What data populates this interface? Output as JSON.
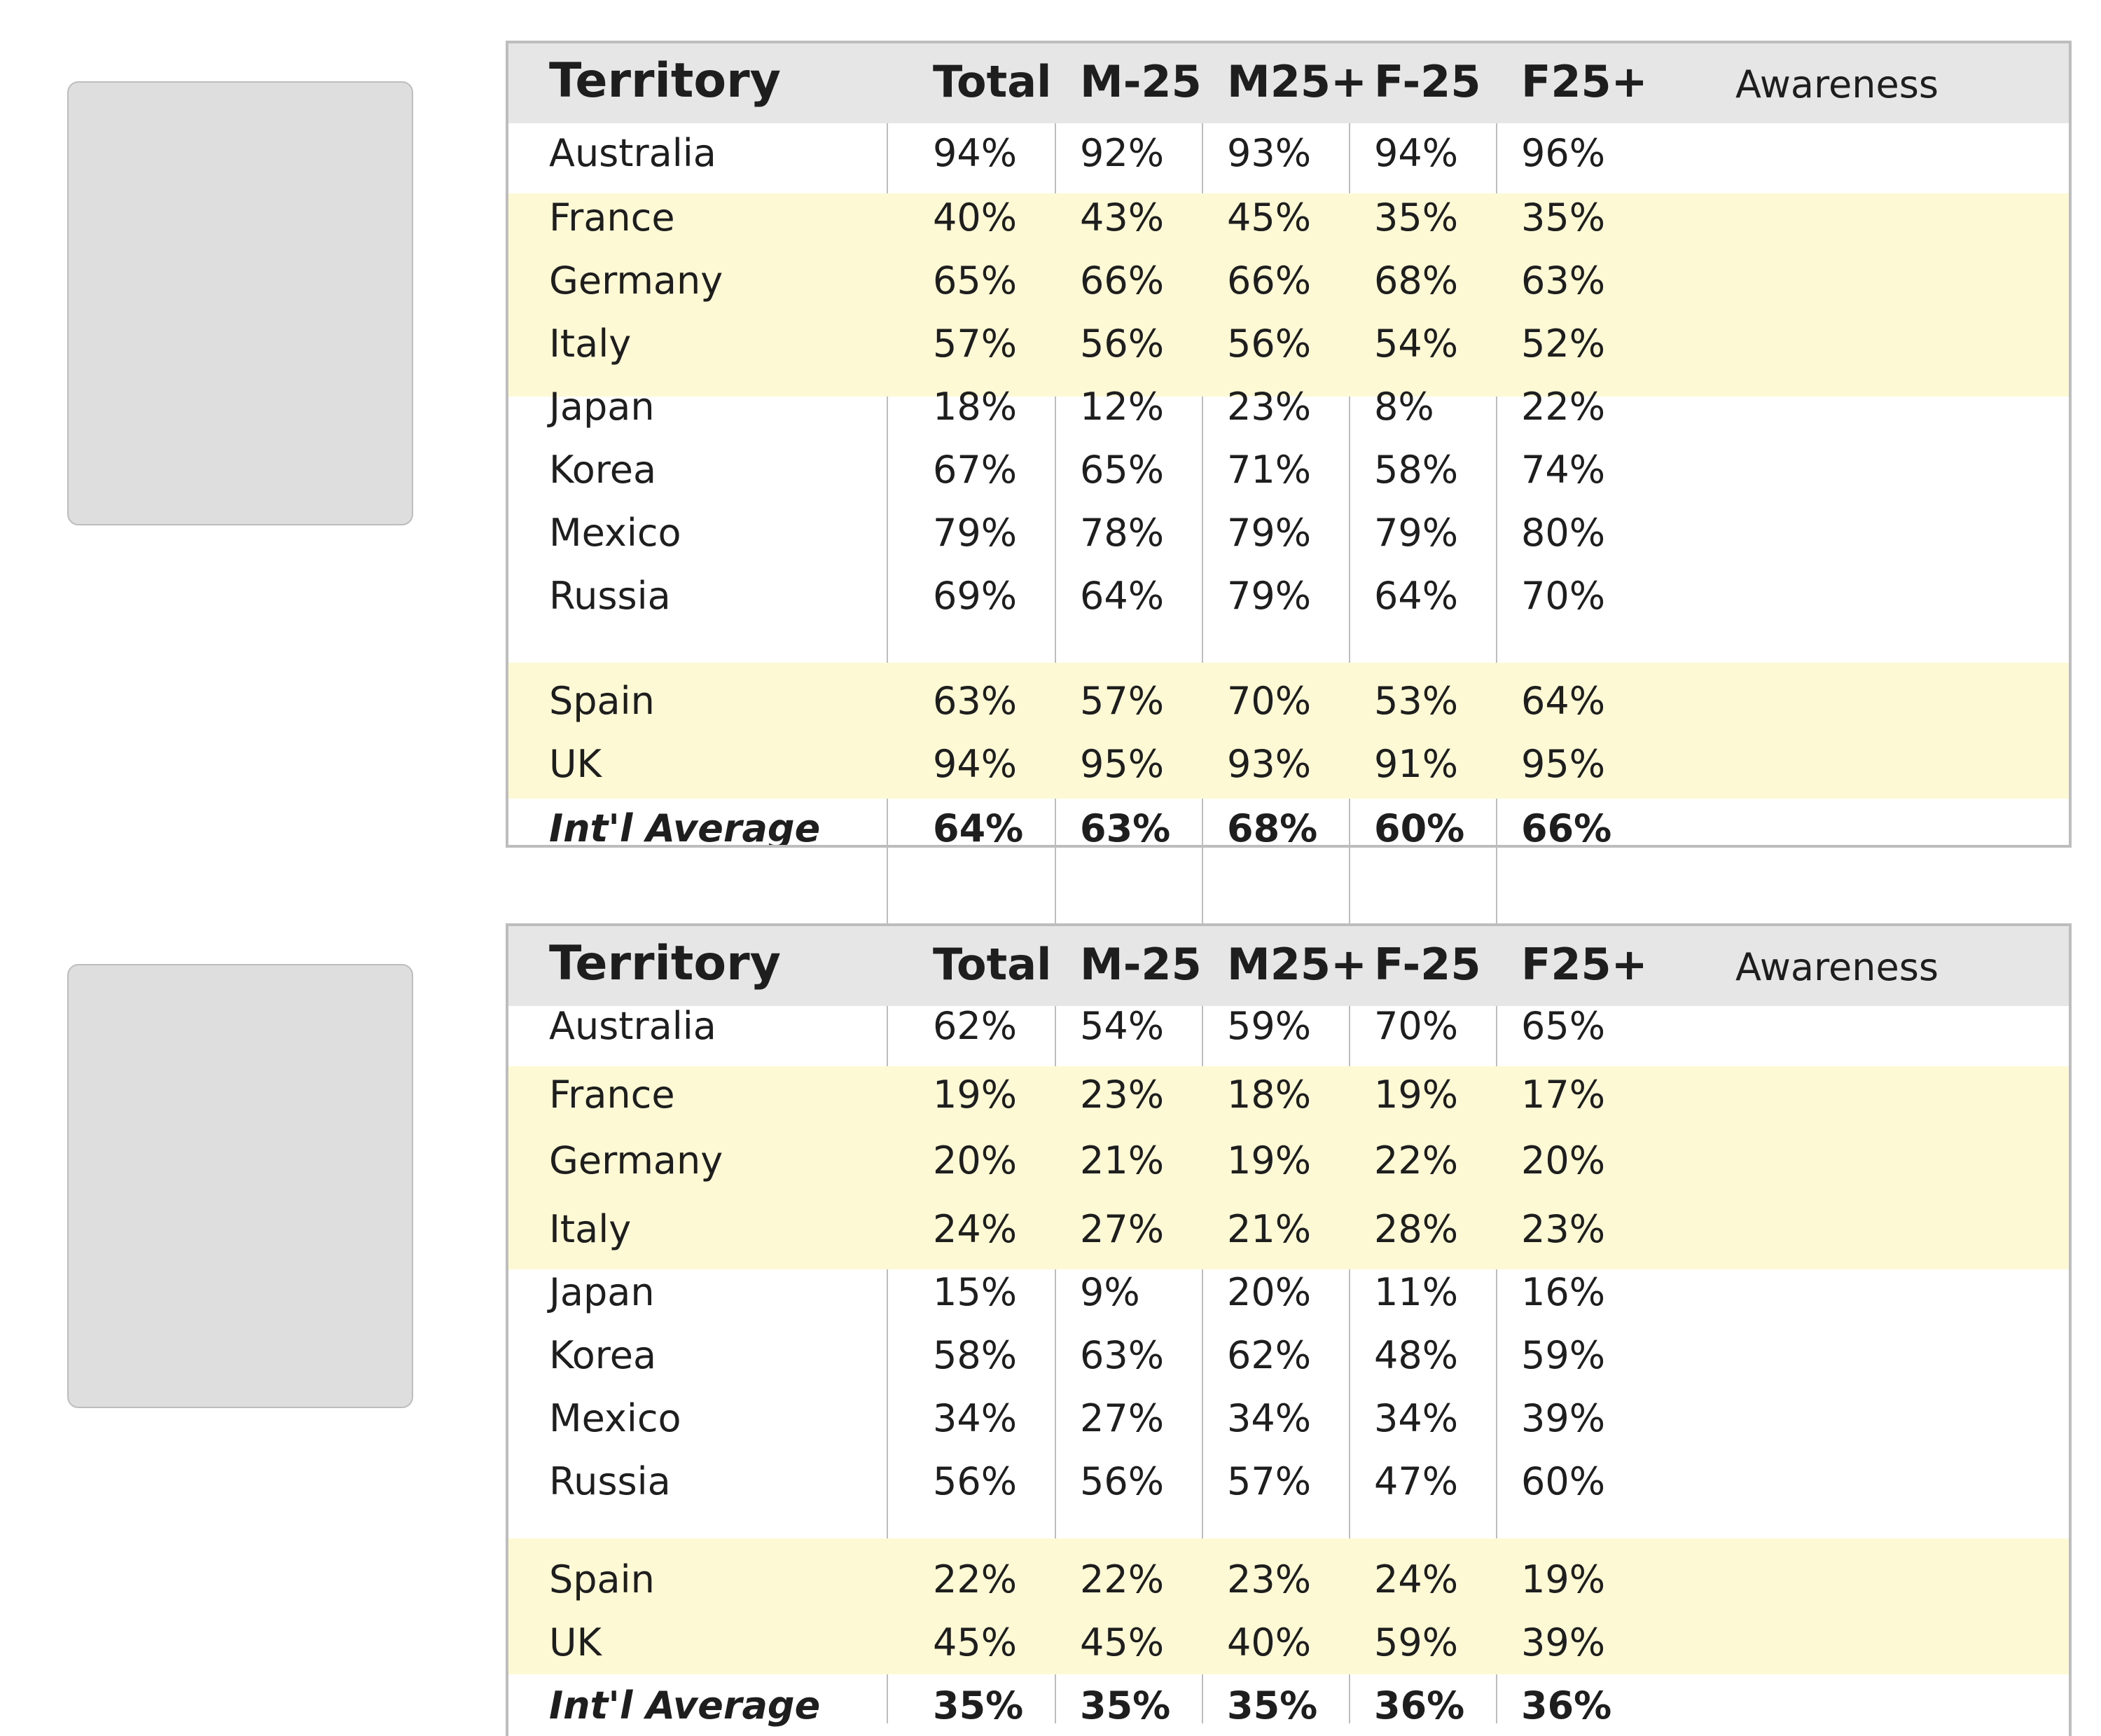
{
  "tables": [
    {
      "header": {
        "territory": "Territory",
        "total": "Total",
        "m_under25": "M-25",
        "m_25plus": "M25+",
        "f_under25": "F-25",
        "f_25plus": "F25+",
        "label": "Awareness"
      },
      "rows": [
        {
          "territory": "Australia",
          "total": "94%",
          "m_under25": "92%",
          "m_25plus": "93%",
          "f_under25": "94%",
          "f_25plus": "96%"
        },
        {
          "territory": "France",
          "total": "40%",
          "m_under25": "43%",
          "m_25plus": "45%",
          "f_under25": "35%",
          "f_25plus": "35%"
        },
        {
          "territory": "Germany",
          "total": "65%",
          "m_under25": "66%",
          "m_25plus": "66%",
          "f_under25": "68%",
          "f_25plus": "63%"
        },
        {
          "territory": "Italy",
          "total": "57%",
          "m_under25": "56%",
          "m_25plus": "56%",
          "f_under25": "54%",
          "f_25plus": "52%"
        },
        {
          "territory": "Japan",
          "total": "18%",
          "m_under25": "12%",
          "m_25plus": "23%",
          "f_under25": "8%",
          "f_25plus": "22%"
        },
        {
          "territory": "Korea",
          "total": "67%",
          "m_under25": "65%",
          "m_25plus": "71%",
          "f_under25": "58%",
          "f_25plus": "74%"
        },
        {
          "territory": "Mexico",
          "total": "79%",
          "m_under25": "78%",
          "m_25plus": "79%",
          "f_under25": "79%",
          "f_25plus": "80%"
        },
        {
          "territory": "Russia",
          "total": "69%",
          "m_under25": "64%",
          "m_25plus": "79%",
          "f_under25": "64%",
          "f_25plus": "70%"
        },
        {
          "territory": "Spain",
          "total": "63%",
          "m_under25": "57%",
          "m_25plus": "70%",
          "f_under25": "53%",
          "f_25plus": "64%"
        },
        {
          "territory": "UK",
          "total": "94%",
          "m_under25": "95%",
          "m_25plus": "93%",
          "f_under25": "91%",
          "f_25plus": "95%"
        }
      ],
      "average": {
        "territory": "Int'l Average",
        "total": "64%",
        "m_under25": "63%",
        "m_25plus": "68%",
        "f_under25": "60%",
        "f_25plus": "66%"
      }
    },
    {
      "header": {
        "territory": "Territory",
        "total": "Total",
        "m_under25": "M-25",
        "m_25plus": "M25+",
        "f_under25": "F-25",
        "f_25plus": "F25+",
        "label": "Awareness"
      },
      "rows": [
        {
          "territory": "Australia",
          "total": "62%",
          "m_under25": "54%",
          "m_25plus": "59%",
          "f_under25": "70%",
          "f_25plus": "65%"
        },
        {
          "territory": "France",
          "total": "19%",
          "m_under25": "23%",
          "m_25plus": "18%",
          "f_under25": "19%",
          "f_25plus": "17%"
        },
        {
          "territory": "Germany",
          "total": "20%",
          "m_under25": "21%",
          "m_25plus": "19%",
          "f_under25": "22%",
          "f_25plus": "20%"
        },
        {
          "territory": "Italy",
          "total": "24%",
          "m_under25": "27%",
          "m_25plus": "21%",
          "f_under25": "28%",
          "f_25plus": "23%"
        },
        {
          "territory": "Japan",
          "total": "15%",
          "m_under25": "9%",
          "m_25plus": "20%",
          "f_under25": "11%",
          "f_25plus": "16%"
        },
        {
          "territory": "Korea",
          "total": "58%",
          "m_under25": "63%",
          "m_25plus": "62%",
          "f_under25": "48%",
          "f_25plus": "59%"
        },
        {
          "territory": "Mexico",
          "total": "34%",
          "m_under25": "27%",
          "m_25plus": "34%",
          "f_under25": "34%",
          "f_25plus": "39%"
        },
        {
          "territory": "Russia",
          "total": "56%",
          "m_under25": "56%",
          "m_25plus": "57%",
          "f_under25": "47%",
          "f_25plus": "60%"
        },
        {
          "territory": "Spain",
          "total": "22%",
          "m_under25": "22%",
          "m_25plus": "23%",
          "f_under25": "24%",
          "f_25plus": "19%"
        },
        {
          "territory": "UK",
          "total": "45%",
          "m_under25": "45%",
          "m_25plus": "40%",
          "f_under25": "59%",
          "f_25plus": "39%"
        }
      ],
      "average": {
        "territory": "Int'l Average",
        "total": "35%",
        "m_under25": "35%",
        "m_25plus": "35%",
        "f_under25": "36%",
        "f_25plus": "36%"
      }
    }
  ],
  "colors": {
    "header_bg": "#e6e6e6",
    "highlight_row_bg": "#fdf9d4",
    "thumbnail_bg": "#dedede",
    "rule": "#bdbdbd"
  }
}
